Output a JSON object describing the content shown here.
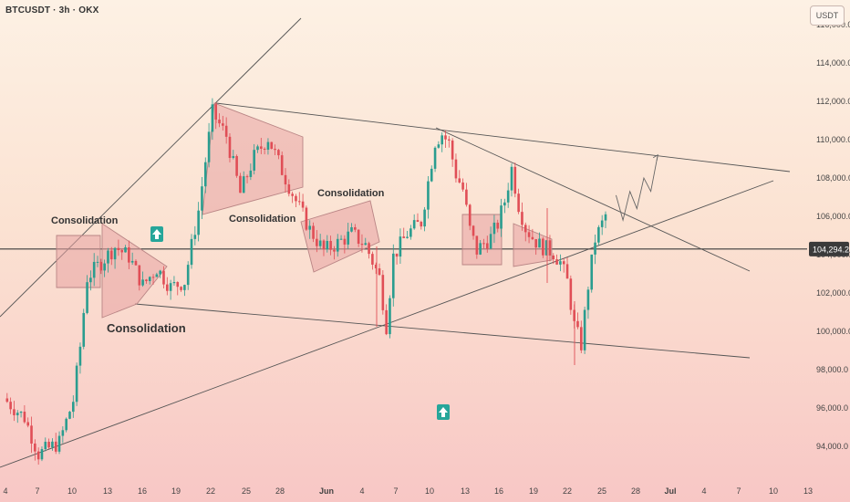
{
  "symbol_label": "BTCUSDT · 3h · OKX",
  "currency_button": "USDT",
  "colors": {
    "up": "#2a9d8f",
    "down": "#e04e56",
    "line": "#555555",
    "box_fill": "#e7a3a3",
    "box_stroke": "#b98585",
    "badge": "#26a69a"
  },
  "chart_data": {
    "type": "candlestick",
    "title": "",
    "timeframe": "3h",
    "ylim": [
      93000,
      115500
    ],
    "y_ticks": [
      "94,000.0",
      "96,000.0",
      "98,000.0",
      "100,000.0",
      "102,000.0",
      "104,000.0",
      "106,000.0",
      "108,000.0",
      "110,000.0",
      "112,000.0",
      "114,000.0",
      "116,000.0"
    ],
    "x_ticks": [
      "4",
      "7",
      "10",
      "13",
      "16",
      "19",
      "22",
      "25",
      "28",
      "Jun",
      "4",
      "7",
      "10",
      "13",
      "16",
      "19",
      "22",
      "25",
      "28",
      "Jul",
      "4",
      "7",
      "10",
      "13"
    ],
    "current_price": 104294.2,
    "current_price_label": "104,294.2",
    "close_path": [
      {
        "x": 0,
        "y": 96500
      },
      {
        "x": 3,
        "y": 95500
      },
      {
        "x": 5,
        "y": 93600
      },
      {
        "x": 8,
        "y": 94200
      },
      {
        "x": 10,
        "y": 96400
      },
      {
        "x": 11,
        "y": 99200
      },
      {
        "x": 12,
        "y": 102800
      },
      {
        "x": 14,
        "y": 103600
      },
      {
        "x": 16,
        "y": 104400
      },
      {
        "x": 18,
        "y": 103900
      },
      {
        "x": 20,
        "y": 102400
      },
      {
        "x": 22,
        "y": 103300
      },
      {
        "x": 24,
        "y": 102300
      },
      {
        "x": 26,
        "y": 102600
      },
      {
        "x": 28,
        "y": 106300
      },
      {
        "x": 29,
        "y": 108900
      },
      {
        "x": 30,
        "y": 111400
      },
      {
        "x": 32,
        "y": 110200
      },
      {
        "x": 34,
        "y": 107200
      },
      {
        "x": 36,
        "y": 109100
      },
      {
        "x": 38,
        "y": 110100
      },
      {
        "x": 40,
        "y": 108400
      },
      {
        "x": 42,
        "y": 106800
      },
      {
        "x": 44,
        "y": 105300
      },
      {
        "x": 46,
        "y": 104200
      },
      {
        "x": 48,
        "y": 104600
      },
      {
        "x": 50,
        "y": 105100
      },
      {
        "x": 52,
        "y": 104500
      },
      {
        "x": 54,
        "y": 102800
      },
      {
        "x": 55,
        "y": 100300
      },
      {
        "x": 56,
        "y": 103900
      },
      {
        "x": 58,
        "y": 105100
      },
      {
        "x": 60,
        "y": 105700
      },
      {
        "x": 61,
        "y": 107800
      },
      {
        "x": 62,
        "y": 109900
      },
      {
        "x": 63,
        "y": 110300
      },
      {
        "x": 64,
        "y": 109800
      },
      {
        "x": 65,
        "y": 108200
      },
      {
        "x": 66,
        "y": 107400
      },
      {
        "x": 67,
        "y": 105300
      },
      {
        "x": 68,
        "y": 104200
      },
      {
        "x": 69,
        "y": 104600
      },
      {
        "x": 70,
        "y": 104900
      },
      {
        "x": 71,
        "y": 105600
      },
      {
        "x": 72,
        "y": 106800
      },
      {
        "x": 73,
        "y": 108500
      },
      {
        "x": 74,
        "y": 106600
      },
      {
        "x": 75,
        "y": 105400
      },
      {
        "x": 76,
        "y": 104900
      },
      {
        "x": 77,
        "y": 104500
      },
      {
        "x": 78,
        "y": 104300
      },
      {
        "x": 79,
        "y": 104100
      },
      {
        "x": 80,
        "y": 103600
      },
      {
        "x": 81,
        "y": 102600
      },
      {
        "x": 82,
        "y": 100300
      },
      {
        "x": 83,
        "y": 99300
      },
      {
        "x": 84,
        "y": 102400
      },
      {
        "x": 85,
        "y": 104800
      },
      {
        "x": 86,
        "y": 105600
      },
      {
        "x": 87,
        "y": 106500
      },
      {
        "x": 88,
        "y": 107100
      }
    ],
    "projection_path": [
      {
        "x": 88,
        "y": 107100
      },
      {
        "x": 89,
        "y": 105800
      },
      {
        "x": 90,
        "y": 107300
      },
      {
        "x": 91,
        "y": 106400
      },
      {
        "x": 92,
        "y": 108000
      },
      {
        "x": 93,
        "y": 107300
      },
      {
        "x": 94,
        "y": 109200
      }
    ],
    "annotations": [
      {
        "text": "Consolidation"
      },
      {
        "text": "Consolidation"
      },
      {
        "text": "Consolidation"
      },
      {
        "text": "Consolidation"
      }
    ]
  }
}
